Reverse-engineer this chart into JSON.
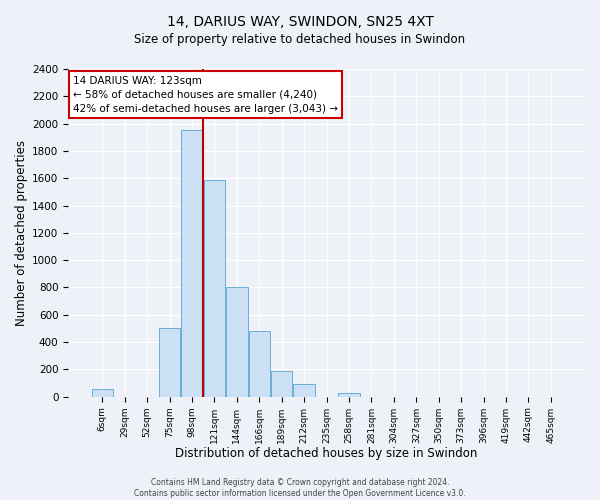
{
  "title": "14, DARIUS WAY, SWINDON, SN25 4XT",
  "subtitle": "Size of property relative to detached houses in Swindon",
  "xlabel": "Distribution of detached houses by size in Swindon",
  "ylabel": "Number of detached properties",
  "bar_labels": [
    "6sqm",
    "29sqm",
    "52sqm",
    "75sqm",
    "98sqm",
    "121sqm",
    "144sqm",
    "166sqm",
    "189sqm",
    "212sqm",
    "235sqm",
    "258sqm",
    "281sqm",
    "304sqm",
    "327sqm",
    "350sqm",
    "373sqm",
    "396sqm",
    "419sqm",
    "442sqm",
    "465sqm"
  ],
  "bar_values": [
    55,
    0,
    0,
    500,
    1950,
    1590,
    800,
    480,
    185,
    90,
    0,
    30,
    0,
    0,
    0,
    0,
    0,
    0,
    0,
    0,
    0
  ],
  "bar_color": "#cce0f5",
  "bar_edge_color": "#6baed6",
  "ylim": [
    0,
    2400
  ],
  "yticks": [
    0,
    200,
    400,
    600,
    800,
    1000,
    1200,
    1400,
    1600,
    1800,
    2000,
    2200,
    2400
  ],
  "vline_color": "#c00000",
  "annotation_title": "14 DARIUS WAY: 123sqm",
  "annotation_line1": "← 58% of detached houses are smaller (4,240)",
  "annotation_line2": "42% of semi-detached houses are larger (3,043) →",
  "annotation_box_color": "#cc0000",
  "footer1": "Contains HM Land Registry data © Crown copyright and database right 2024.",
  "footer2": "Contains public sector information licensed under the Open Government Licence v3.0.",
  "background_color": "#eef2f8",
  "plot_bg_color": "#eef2f8",
  "grid_color": "#ffffff"
}
